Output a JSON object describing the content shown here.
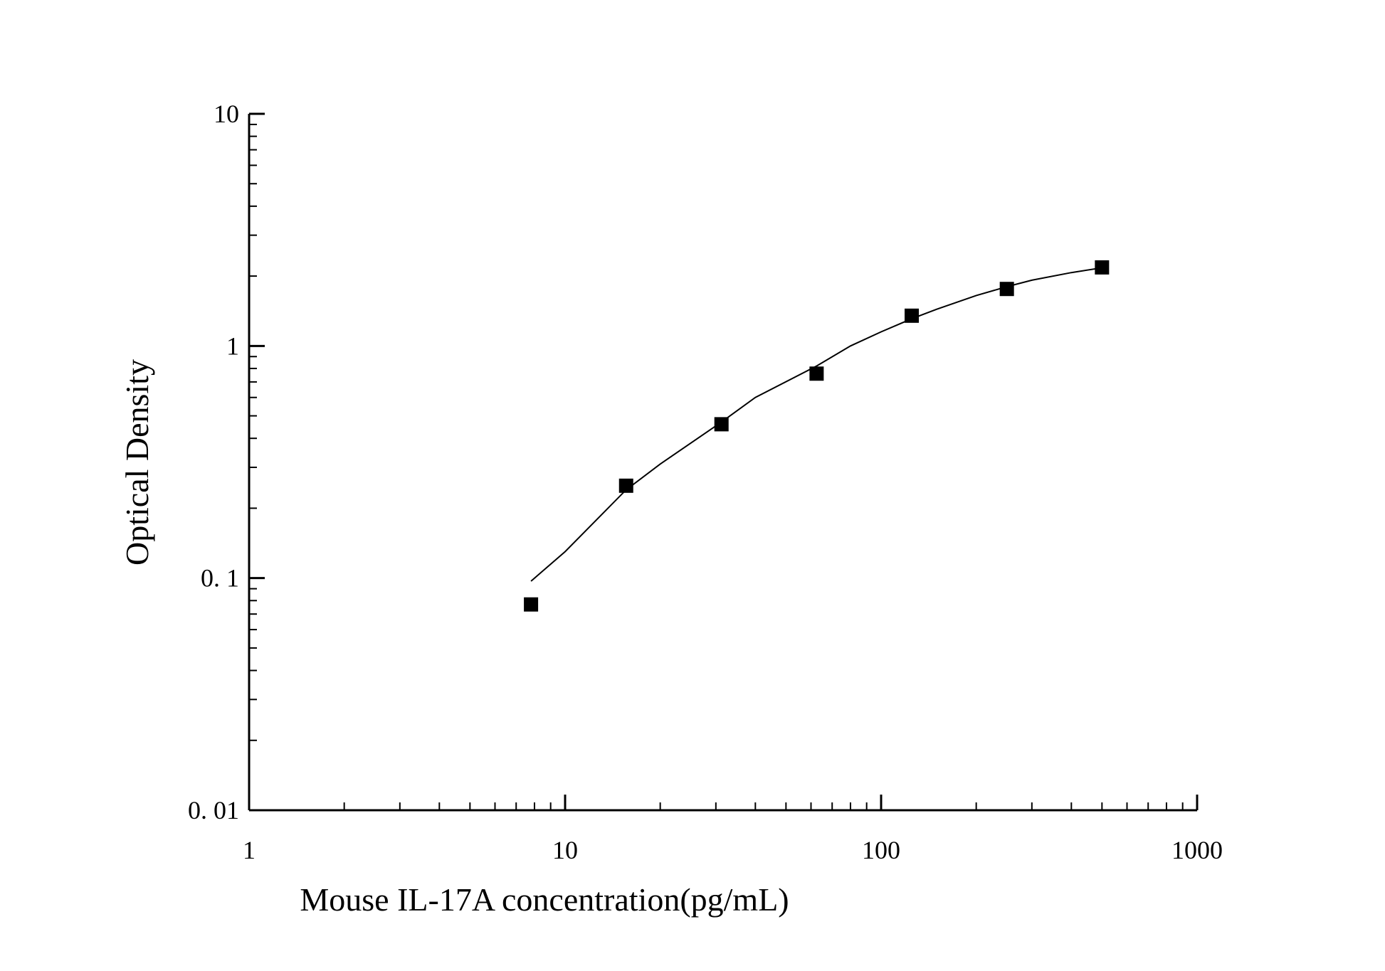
{
  "chart_data": {
    "type": "scatter",
    "title": "",
    "xlabel": "Mouse IL-17A concentration(pg/mL)",
    "ylabel": "Optical Density",
    "x_scale": "log",
    "y_scale": "log",
    "xlim": [
      1,
      1000
    ],
    "ylim": [
      0.01,
      10
    ],
    "x_tick_labels": [
      "1",
      "10",
      "100",
      "1000"
    ],
    "y_tick_labels": [
      "0. 01",
      "0. 1",
      "1",
      "10"
    ],
    "grid": false,
    "legend": "none",
    "series": [
      {
        "type": "scatter",
        "marker": "square",
        "x": [
          7.8,
          15.6,
          31.25,
          62.5,
          125,
          250,
          500
        ],
        "y": [
          0.077,
          0.25,
          0.46,
          0.76,
          1.35,
          1.76,
          2.18
        ]
      },
      {
        "type": "line",
        "x": [
          7.8,
          10,
          15.6,
          20,
          31.25,
          40,
          62.5,
          80,
          100,
          125,
          150,
          200,
          250,
          300,
          400,
          500
        ],
        "y": [
          0.097,
          0.13,
          0.24,
          0.31,
          0.47,
          0.6,
          0.82,
          1.0,
          1.15,
          1.31,
          1.44,
          1.65,
          1.8,
          1.92,
          2.07,
          2.17
        ]
      }
    ],
    "colors": {
      "marker": "#000000",
      "line": "#000000",
      "axis": "#000000"
    }
  }
}
